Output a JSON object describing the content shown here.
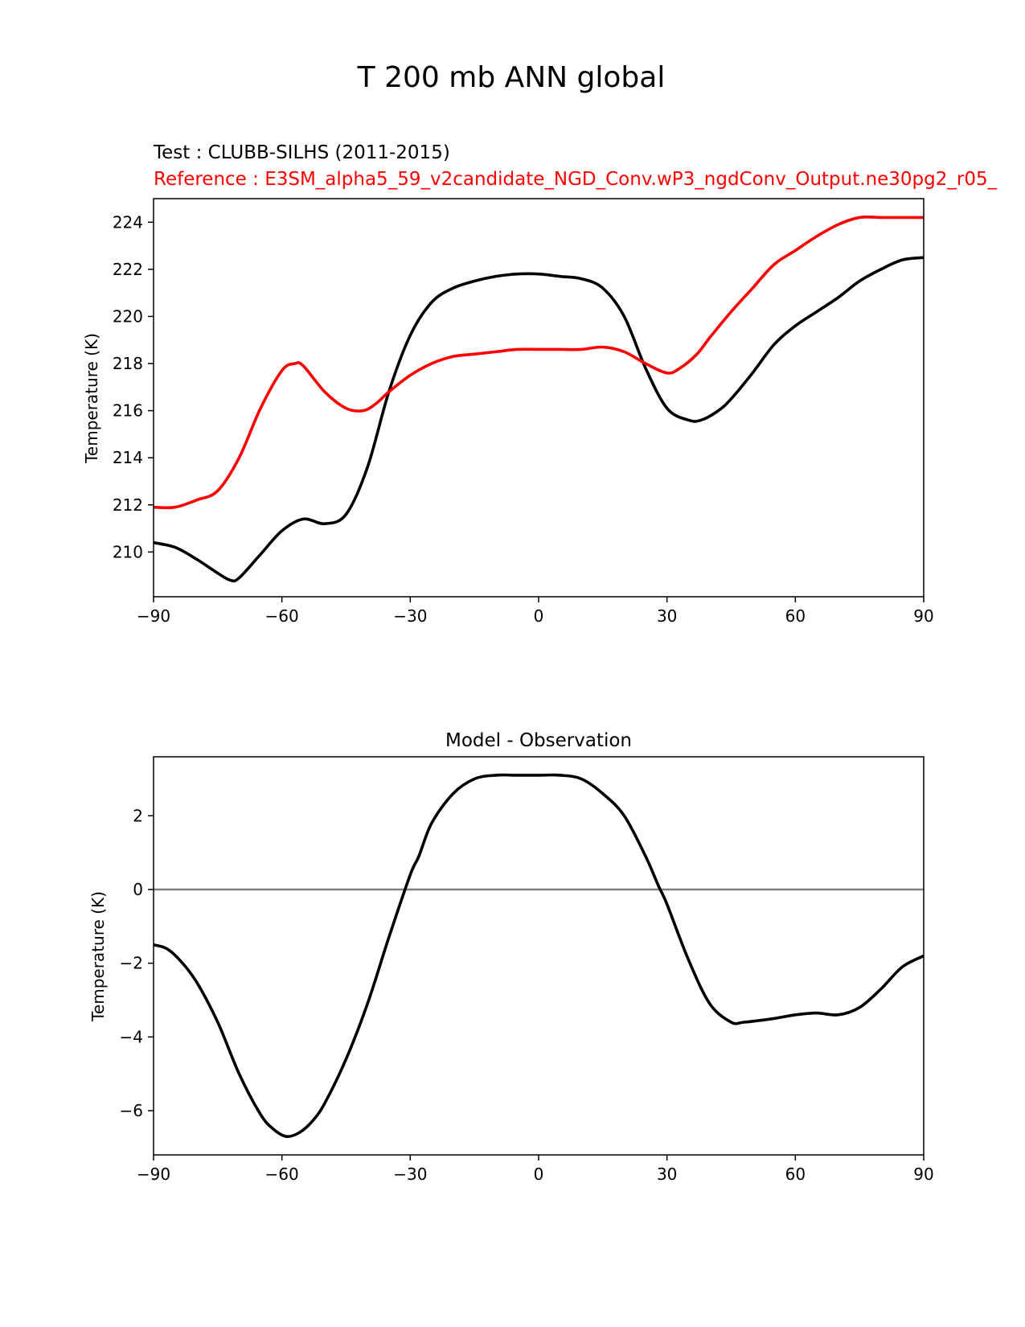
{
  "figure": {
    "suptitle": "T 200 mb ANN global"
  },
  "chart_data": [
    {
      "type": "line",
      "test_label": "Test : CLUBB-SILHS (2011-2015)",
      "reference_label": "Reference : E3SM_alpha5_59_v2candidate_NGD_Conv.wP3_ngdConv_Output.ne30pg2_r05_",
      "title": "",
      "xlabel": "",
      "ylabel": "Temperature (K)",
      "xlim": [
        -90,
        90
      ],
      "ylim": [
        208.1,
        225.0
      ],
      "xticks": [
        -90,
        -60,
        -30,
        0,
        30,
        60,
        90
      ],
      "xtick_labels": [
        "−90",
        "−60",
        "−30",
        "0",
        "30",
        "60",
        "90"
      ],
      "yticks": [
        210,
        212,
        214,
        216,
        218,
        220,
        222,
        224
      ],
      "ytick_labels": [
        "210",
        "212",
        "214",
        "216",
        "218",
        "220",
        "222",
        "224"
      ],
      "series": [
        {
          "name": "test",
          "color": "#000000",
          "x": [
            -90,
            -85,
            -80,
            -75,
            -72,
            -70,
            -65,
            -60,
            -55,
            -50,
            -45,
            -40,
            -35,
            -30,
            -25,
            -20,
            -15,
            -10,
            -5,
            0,
            5,
            10,
            15,
            20,
            25,
            30,
            35,
            38,
            42,
            45,
            50,
            55,
            60,
            65,
            70,
            75,
            80,
            85,
            90
          ],
          "y": [
            210.4,
            210.2,
            209.7,
            209.1,
            208.8,
            208.9,
            209.9,
            210.9,
            211.4,
            211.2,
            211.6,
            213.6,
            216.8,
            219.2,
            220.6,
            221.2,
            221.5,
            221.7,
            221.8,
            221.8,
            221.7,
            221.6,
            221.2,
            220.0,
            217.8,
            216.1,
            215.6,
            215.6,
            216.0,
            216.5,
            217.6,
            218.8,
            219.6,
            220.2,
            220.8,
            221.5,
            222.0,
            222.4,
            222.5
          ]
        },
        {
          "name": "reference",
          "color": "#ff0000",
          "x": [
            -90,
            -85,
            -80,
            -75,
            -70,
            -65,
            -60,
            -57,
            -55,
            -50,
            -45,
            -41,
            -38,
            -35,
            -30,
            -25,
            -20,
            -15,
            -10,
            -5,
            0,
            5,
            10,
            15,
            20,
            25,
            30,
            33,
            37,
            40,
            45,
            50,
            55,
            60,
            65,
            70,
            75,
            80,
            85,
            90
          ],
          "y": [
            211.9,
            211.9,
            212.2,
            212.6,
            214.0,
            216.1,
            217.7,
            218.0,
            217.9,
            216.8,
            216.1,
            216.0,
            216.3,
            216.8,
            217.5,
            218.0,
            218.3,
            218.4,
            218.5,
            218.6,
            218.6,
            218.6,
            218.6,
            218.7,
            218.5,
            218.0,
            217.6,
            217.8,
            218.4,
            219.1,
            220.2,
            221.2,
            222.2,
            222.8,
            223.4,
            223.9,
            224.2,
            224.2,
            224.2,
            224.2
          ]
        }
      ]
    },
    {
      "type": "line",
      "title": "Model - Observation",
      "xlabel": "",
      "ylabel": "Temperature (K)",
      "xlim": [
        -90,
        90
      ],
      "ylim": [
        -7.2,
        3.6
      ],
      "xticks": [
        -90,
        -60,
        -30,
        0,
        30,
        60,
        90
      ],
      "xtick_labels": [
        "−90",
        "−60",
        "−30",
        "0",
        "30",
        "60",
        "90"
      ],
      "yticks": [
        -6,
        -4,
        -2,
        0,
        2
      ],
      "ytick_labels": [
        "−6",
        "−4",
        "−2",
        "0",
        "2"
      ],
      "zero_line": {
        "value": 0,
        "color": "#808080"
      },
      "series": [
        {
          "name": "difference",
          "color": "#000000",
          "x": [
            -90,
            -87,
            -84,
            -80,
            -75,
            -70,
            -65,
            -62,
            -59,
            -56,
            -53,
            -50,
            -45,
            -40,
            -35,
            -30,
            -28,
            -25,
            -20,
            -15,
            -10,
            -5,
            0,
            5,
            10,
            15,
            20,
            25,
            28,
            30,
            35,
            40,
            45,
            48,
            55,
            60,
            65,
            70,
            75,
            80,
            85,
            90
          ],
          "y": [
            -1.5,
            -1.6,
            -1.9,
            -2.5,
            -3.6,
            -5.0,
            -6.1,
            -6.5,
            -6.7,
            -6.6,
            -6.3,
            -5.8,
            -4.6,
            -3.1,
            -1.3,
            0.4,
            0.9,
            1.8,
            2.6,
            3.0,
            3.1,
            3.1,
            3.1,
            3.1,
            3.0,
            2.6,
            2.0,
            0.9,
            0.1,
            -0.4,
            -1.9,
            -3.1,
            -3.6,
            -3.6,
            -3.5,
            -3.4,
            -3.35,
            -3.4,
            -3.2,
            -2.7,
            -2.1,
            -1.8
          ]
        }
      ]
    }
  ]
}
